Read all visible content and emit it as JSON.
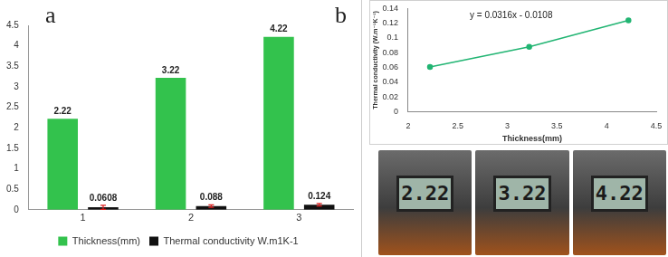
{
  "chart_data": [
    {
      "type": "bar",
      "annotations": [
        "a"
      ],
      "categories": [
        "1",
        "2",
        "3"
      ],
      "series": [
        {
          "name": "Thickness(mm)",
          "color": "#33c24d",
          "values": [
            2.22,
            3.22,
            4.22
          ]
        },
        {
          "name": "Thermal conductivity W.m1K-1",
          "color": "#111111",
          "values": [
            0.0608,
            0.088,
            0.124
          ],
          "errors": [
            0.05,
            0.03,
            0.03
          ]
        }
      ],
      "ylim": [
        0,
        4.5
      ],
      "yticks": [
        0,
        0.5,
        1,
        1.5,
        2,
        2.5,
        3,
        3.5,
        4,
        4.5
      ],
      "grid": false,
      "legend": "bottom",
      "data_labels": true
    },
    {
      "type": "line",
      "annotations": [
        "b",
        "y = 0.0316x - 0.0108"
      ],
      "x": [
        2.22,
        3.22,
        4.22
      ],
      "values": [
        0.0608,
        0.088,
        0.124
      ],
      "color": "#22b573",
      "marker": "circle",
      "xlabel": "Thickness(mm)",
      "ylabel": "Thermal conductivity (W.m⁻¹K⁻¹)",
      "xlim": [
        2,
        4.5
      ],
      "xticks": [
        2,
        2.5,
        3,
        3.5,
        4,
        4.5
      ],
      "ylim": [
        0,
        0.14
      ],
      "yticks": [
        0,
        0.02,
        0.04,
        0.06,
        0.08,
        0.1,
        0.12,
        0.14
      ],
      "grid": false
    }
  ],
  "photos": [
    {
      "display": "2.22"
    },
    {
      "display": "3.22"
    },
    {
      "display": "4.22"
    }
  ]
}
